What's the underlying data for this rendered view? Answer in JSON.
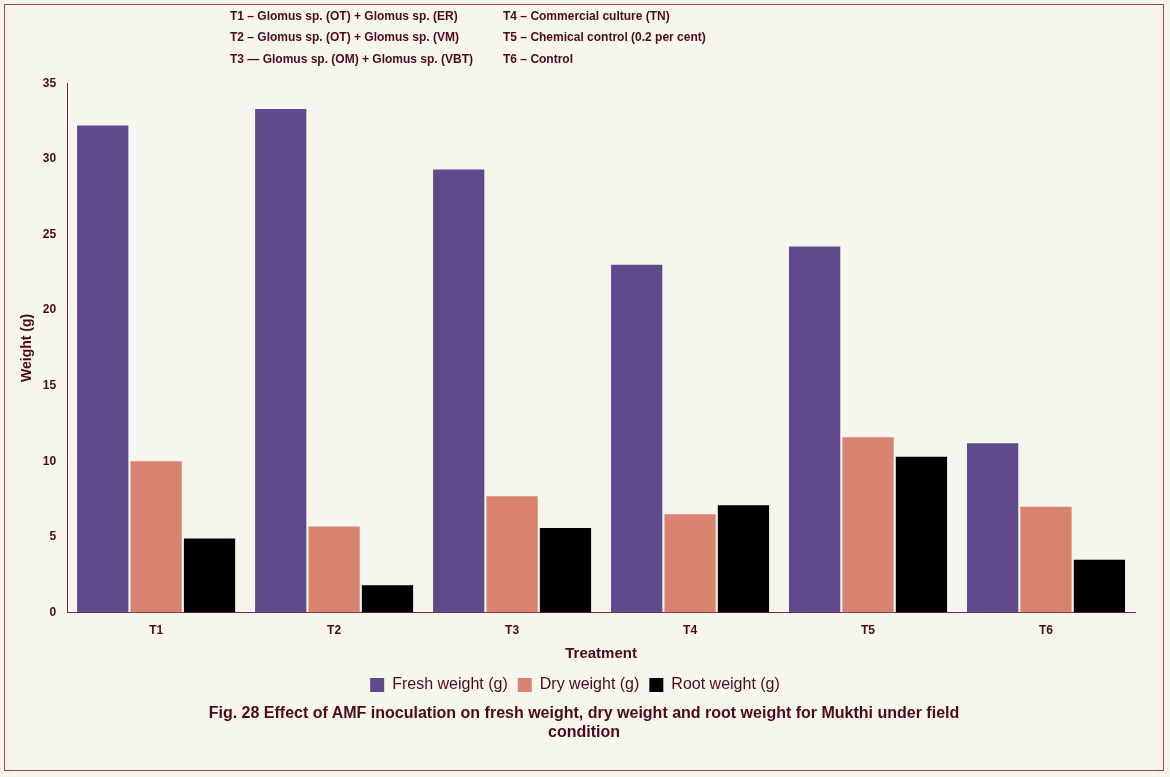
{
  "chart_data": {
    "type": "bar",
    "title": "Fig. 28  Effect of AMF inoculation on fresh weight, dry weight and root weight for Mukthi under field condition",
    "xlabel": "Treatment",
    "ylabel": "Weight (g)",
    "annotations": [
      "T1 – Glomus sp. (OT) + Glomus sp. (ER)",
      "T2 – Glomus sp. (OT) + Glomus sp. (VM)",
      "T3 — Glomus sp. (OM) + Glomus sp. (VBT)",
      "T4 –  Commercial culture (TN)",
      "T5 – Chemical control (0.2 per cent)",
      "T6 – Control"
    ],
    "categories": [
      "T1",
      "T2",
      "T3",
      "T4",
      "T5",
      "T6"
    ],
    "series": [
      {
        "name": "Fresh weight (g)",
        "color": "#5f4b8b",
        "values": [
          32.2,
          33.3,
          29.3,
          23.0,
          24.2,
          11.2
        ]
      },
      {
        "name": "Dry weight (g)",
        "color": "#d9826f",
        "values": [
          10.0,
          5.7,
          7.7,
          6.5,
          11.6,
          7.0
        ]
      },
      {
        "name": "Root weight (g)",
        "color": "#000000",
        "values": [
          4.9,
          1.8,
          5.6,
          7.1,
          10.3,
          3.5
        ]
      }
    ],
    "ylim": [
      0,
      35
    ],
    "yticks": [
      0,
      5,
      10,
      15,
      20,
      25,
      30,
      35
    ],
    "legend": "bottom"
  }
}
